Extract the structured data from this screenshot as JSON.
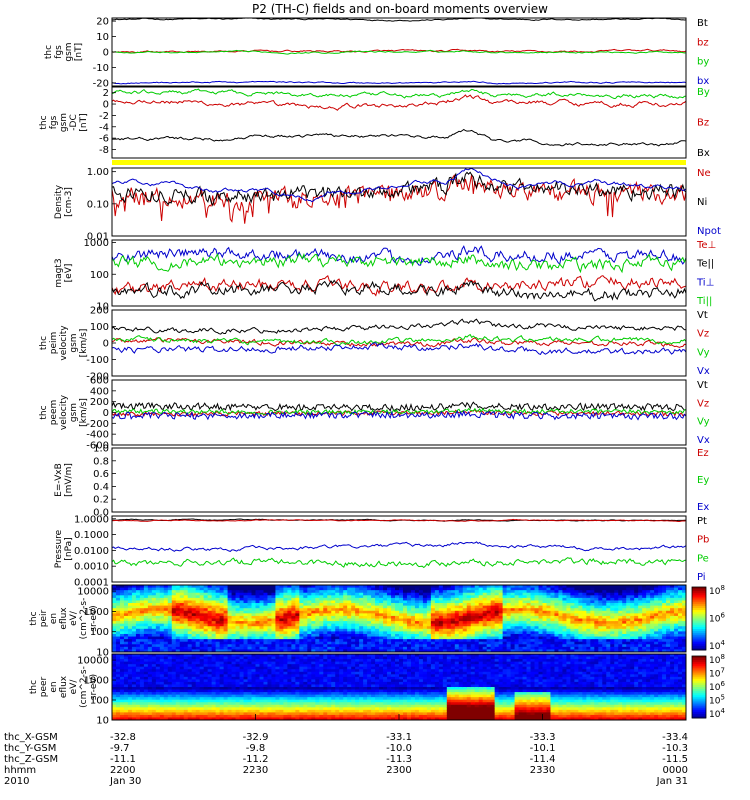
{
  "title": "P2 (TH-C) fields and on-board moments overview",
  "chart_data": [
    {
      "type": "line",
      "ylabel": [
        "thc",
        "fgs",
        "gsm",
        "[nT]"
      ],
      "ylim": [
        -22,
        22
      ],
      "yticks": [
        "20",
        "10",
        "0",
        "-10",
        "-20"
      ],
      "ytick_values": [
        20,
        10,
        0,
        -10,
        -20
      ],
      "series": [
        {
          "name": "Bt",
          "color": "#000000",
          "base": 21,
          "noise": 0.3,
          "wave": 0.3,
          "smooth": 0.9
        },
        {
          "name": "bz",
          "color": "#cc0000",
          "base": 0.5,
          "noise": 0.4,
          "wave": 0.5,
          "smooth": 0.9
        },
        {
          "name": "by",
          "color": "#00cc00",
          "base": 0,
          "noise": 0.3,
          "wave": 0.3,
          "smooth": 0.9
        },
        {
          "name": "bx",
          "color": "#0000cc",
          "base": -20,
          "noise": 0.3,
          "wave": 0.6,
          "smooth": 0.9
        }
      ]
    },
    {
      "type": "line",
      "ylabel": [
        "thc",
        "fgs",
        "gsm",
        "-DC",
        "[nT]"
      ],
      "ylim": [
        -9.5,
        3
      ],
      "yticks": [
        "2",
        "0",
        "-2",
        "-4",
        "-6",
        "-8"
      ],
      "ytick_values": [
        2,
        0,
        -2,
        -4,
        -6,
        -8
      ],
      "series": [
        {
          "name": "By",
          "color": "#00cc00",
          "base": 1.6,
          "noise": 0.25,
          "wave": 0.5,
          "smooth": 0.8
        },
        {
          "name": "Bz",
          "color": "#cc0000",
          "base": 0.3,
          "noise": 0.3,
          "wave": 0.8,
          "smooth": 0.8
        },
        {
          "name": "Bx",
          "color": "#000000",
          "base": -6.2,
          "noise": 0.2,
          "wave": 1.0,
          "smooth": 0.9
        }
      ]
    },
    {
      "type": "line",
      "ylabel": [
        "Density",
        "[cm-3]"
      ],
      "scale": "log",
      "ylim": [
        0.01,
        1.3
      ],
      "yticks": [
        "1.00",
        "0.10",
        "0.01"
      ],
      "ytick_values": [
        1,
        0.1,
        0.01
      ],
      "series": [
        {
          "name": "Ne",
          "color": "#cc0000",
          "base": 0.2,
          "noise": 0.25,
          "wave": 0.4,
          "smooth": 0.5,
          "dips": true
        },
        {
          "name": "Ni",
          "color": "#000000",
          "base": 0.25,
          "noise": 0.2,
          "wave": 0.4,
          "smooth": 0.5
        },
        {
          "name": "Npot",
          "color": "#0000cc",
          "base": 0.4,
          "noise": 0.05,
          "wave": 0.6,
          "smooth": 0.95
        }
      ]
    },
    {
      "type": "line",
      "ylabel": [
        "magt3",
        "[eV]"
      ],
      "scale": "log",
      "ylim": [
        10,
        1200
      ],
      "yticks": [
        "1000",
        "100",
        "10"
      ],
      "ytick_values": [
        1000,
        100,
        10
      ],
      "series": [
        {
          "name": "Te⊥",
          "color": "#cc0000",
          "base": 40,
          "noise": 0.15,
          "wave": 0.3,
          "smooth": 0.6
        },
        {
          "name": "Te||",
          "color": "#000000",
          "base": 30,
          "noise": 0.15,
          "wave": 0.3,
          "smooth": 0.6
        },
        {
          "name": "Ti⊥",
          "color": "#0000cc",
          "base": 350,
          "noise": 0.15,
          "wave": 0.25,
          "smooth": 0.6
        },
        {
          "name": "Ti||",
          "color": "#00cc00",
          "base": 250,
          "noise": 0.15,
          "wave": 0.25,
          "smooth": 0.6
        }
      ]
    },
    {
      "type": "line",
      "ylabel": [
        "thc",
        "peim",
        "velocity",
        "gsm",
        "[km/s]"
      ],
      "ylim": [
        -200,
        200
      ],
      "yticks": [
        "200",
        "100",
        "0",
        "-100",
        "-200"
      ],
      "ytick_values": [
        200,
        100,
        0,
        -100,
        -200
      ],
      "series": [
        {
          "name": "Vt",
          "color": "#000000",
          "base": 90,
          "noise": 12,
          "wave": 20,
          "smooth": 0.6
        },
        {
          "name": "Vz",
          "color": "#cc0000",
          "base": 0,
          "noise": 12,
          "wave": 15,
          "smooth": 0.6
        },
        {
          "name": "Vy",
          "color": "#00cc00",
          "base": 20,
          "noise": 12,
          "wave": 15,
          "smooth": 0.6
        },
        {
          "name": "Vx",
          "color": "#0000cc",
          "base": -40,
          "noise": 15,
          "wave": 20,
          "smooth": 0.6
        }
      ]
    },
    {
      "type": "line",
      "ylabel": [
        "thc",
        "peem",
        "velocity",
        "gsm",
        "[km/s]"
      ],
      "ylim": [
        -600,
        600
      ],
      "yticks": [
        "600",
        "400",
        "200",
        "0",
        "-200",
        "-400",
        "-600"
      ],
      "ytick_values": [
        600,
        400,
        200,
        0,
        -200,
        -400,
        -600
      ],
      "series": [
        {
          "name": "Vt",
          "color": "#000000",
          "base": 110,
          "noise": 60,
          "wave": 20,
          "smooth": 0.1
        },
        {
          "name": "Vz",
          "color": "#cc0000",
          "base": -20,
          "noise": 40,
          "wave": 15,
          "smooth": 0.1
        },
        {
          "name": "Vy",
          "color": "#00cc00",
          "base": 20,
          "noise": 40,
          "wave": 15,
          "smooth": 0.1
        },
        {
          "name": "Vx",
          "color": "#0000cc",
          "base": -60,
          "noise": 60,
          "wave": 20,
          "smooth": 0.1
        }
      ]
    },
    {
      "type": "line",
      "ylabel": [
        "E=-VxB",
        "[mV/m]"
      ],
      "ylim": [
        0,
        1
      ],
      "yticks": [
        "1.0",
        "0.8",
        "0.6",
        "0.4",
        "0.2",
        "0.0"
      ],
      "ytick_values": [
        1,
        0.8,
        0.6,
        0.4,
        0.2,
        0
      ],
      "series": [
        {
          "name": "Ez",
          "color": "#cc0000",
          "empty": true
        },
        {
          "name": "Ey",
          "color": "#00cc00",
          "empty": true
        },
        {
          "name": "Ex",
          "color": "#0000cc",
          "empty": true
        }
      ]
    },
    {
      "type": "line",
      "ylabel": [
        "Pressure",
        "[nPa]"
      ],
      "scale": "log",
      "ylim": [
        0.0001,
        1.5
      ],
      "yticks": [
        "1.0000",
        "0.1000",
        "0.0100",
        "0.0010",
        "0.0001"
      ],
      "ytick_values": [
        1,
        0.1,
        0.01,
        0.001,
        0.0001
      ],
      "series": [
        {
          "name": "Pt",
          "color": "#000000",
          "base": 0.8,
          "noise": 0.02,
          "wave": 0.05,
          "smooth": 0.9
        },
        {
          "name": "Pb",
          "color": "#cc0000",
          "base": 0.75,
          "noise": 0.02,
          "wave": 0.05,
          "smooth": 0.9
        },
        {
          "name": "Pe",
          "color": "#00cc00",
          "base": 0.0015,
          "noise": 0.15,
          "wave": 0.3,
          "smooth": 0.6
        },
        {
          "name": "Pi",
          "color": "#0000cc",
          "base": 0.015,
          "noise": 0.08,
          "wave": 0.3,
          "smooth": 0.8
        }
      ]
    },
    {
      "type": "heatmap",
      "ylabel": [
        "thc",
        "peir",
        "en",
        "eflux",
        "eV/",
        "(cm^2-s-",
        "sr-eV)"
      ],
      "scale": "log",
      "ylim": [
        10,
        20000
      ],
      "yticks": [
        "10000",
        "1000",
        "100",
        "10"
      ],
      "ytick_values": [
        10000,
        1000,
        100,
        10
      ],
      "colorbar_ticks": [
        "10^8",
        "10^6",
        "10^4"
      ],
      "ion": true
    },
    {
      "type": "heatmap",
      "ylabel": [
        "thc",
        "peer",
        "en",
        "eflux",
        "eV/",
        "(cm^2-s-",
        "sr-eV)"
      ],
      "scale": "log",
      "ylim": [
        10,
        20000
      ],
      "yticks": [
        "10000",
        "1000",
        "100",
        "10"
      ],
      "ytick_values": [
        10000,
        1000,
        100,
        10
      ],
      "colorbar_ticks": [
        "10^8",
        "10^7",
        "10^6",
        "10^5",
        "10^4"
      ],
      "ion": false
    }
  ],
  "xaxis": {
    "rows": [
      {
        "label": "thc_X-GSM",
        "values": [
          "-32.8",
          "-32.9",
          "-33.1",
          "-33.3",
          "-33.4"
        ]
      },
      {
        "label": "thc_Y-GSM",
        "values": [
          "-9.7",
          "-9.8",
          "-10.0",
          "-10.1",
          "-10.3"
        ]
      },
      {
        "label": "thc_Z-GSM",
        "values": [
          "-11.1",
          "-11.2",
          "-11.3",
          "-11.4",
          "-11.5"
        ]
      },
      {
        "label": "hhmm",
        "values": [
          "2200",
          "2230",
          "2300",
          "2330",
          "0000"
        ]
      },
      {
        "label": "2010",
        "values": [
          "Jan 30",
          "",
          "",
          "",
          "Jan 31"
        ]
      }
    ]
  }
}
